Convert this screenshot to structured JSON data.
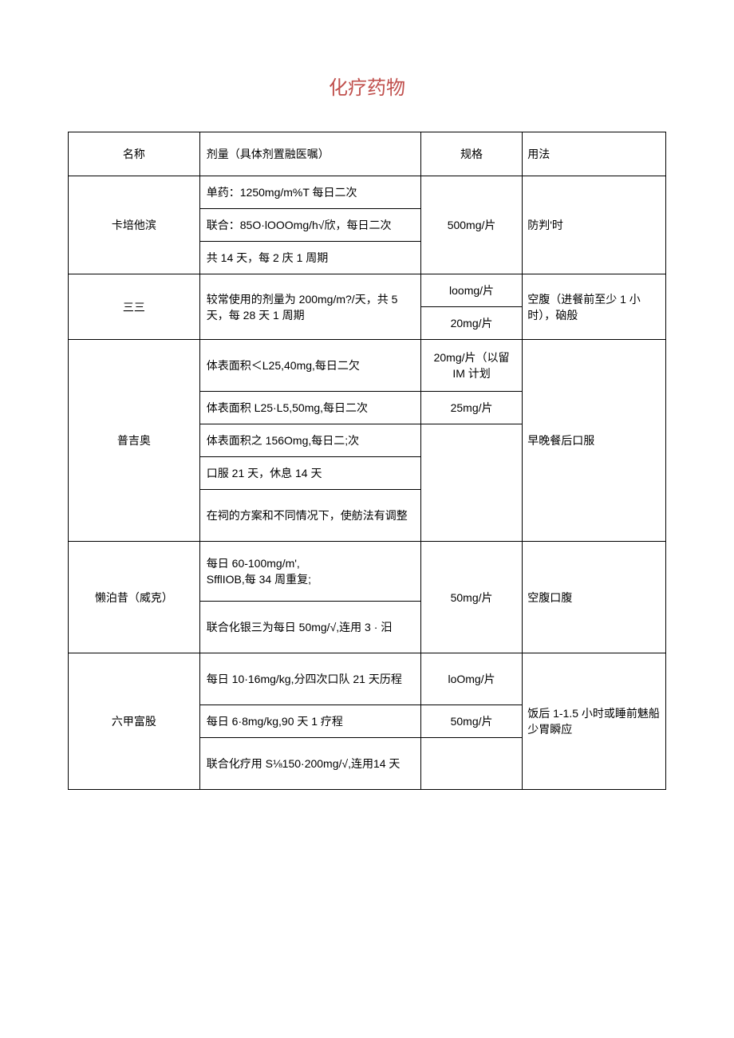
{
  "title": "化疗药物",
  "colors": {
    "title": "#c0504d",
    "border": "#000000",
    "text": "#000000",
    "background": "#ffffff"
  },
  "headers": {
    "name": "名称",
    "dose": "剂量（具体剂置融医嘱）",
    "spec": "规格",
    "usage": "用法"
  },
  "drugs": {
    "capecitabine": {
      "name": "卡培他滨",
      "dose1": "单药：1250mg/m%T 每日二次",
      "dose2": "联合：85O·lOOOmg/h√欣，每日二次",
      "dose3": "共 14 天，每 2 庆 1 周期",
      "spec": "500mg/片",
      "usage": "防判'时"
    },
    "tegafur": {
      "name": "三三",
      "dose": "较常使用的剂量为 200mg/m?/天，共 5 天，每 28 天 1 周期",
      "spec1": "loomg/片",
      "spec2": "20mg/片",
      "usage": "空腹（进餐前至少 1 小时），硇般"
    },
    "pujiao": {
      "name": "普吉奥",
      "dose1": "体表面积＜L25,40mg,每日二欠",
      "dose2": "体表面积 L25·L5,50mg,每日二次",
      "dose3": "体表面积之 156Omg,每日二;次",
      "dose4": "口服 21 天，休息 14 天",
      "dose5": "在祠的方案和不同情况下，使舫法有调整",
      "spec1": "20mg/片（以留 IM 计划",
      "spec2": "25mg/片",
      "usage": "早晚餐后口服"
    },
    "lanboxi": {
      "name": "懒泊昔（威克）",
      "dose1": "每日 60-100mg/m',",
      "dose1b": "SfflIOB,每 34 周重复;",
      "dose2": "联合化银三为每日 50mg/√,连用 3 · 汨",
      "spec": "50mg/片",
      "usage": "空腹口腹"
    },
    "liujiafu": {
      "name": "六甲富股",
      "dose1": "每日 10·16mg/kg,分四次口队 21 天历程",
      "dose2": "每日 6·8mg/kg,90 天 1 疗程",
      "dose3": "联合化疗用 S⅛150·200mg/√,连用14 天",
      "spec1": "loOmg/片",
      "spec2": "50mg/片",
      "usage": "饭后 1-1.5 小时或睡前魅船少胃瞬应"
    }
  }
}
